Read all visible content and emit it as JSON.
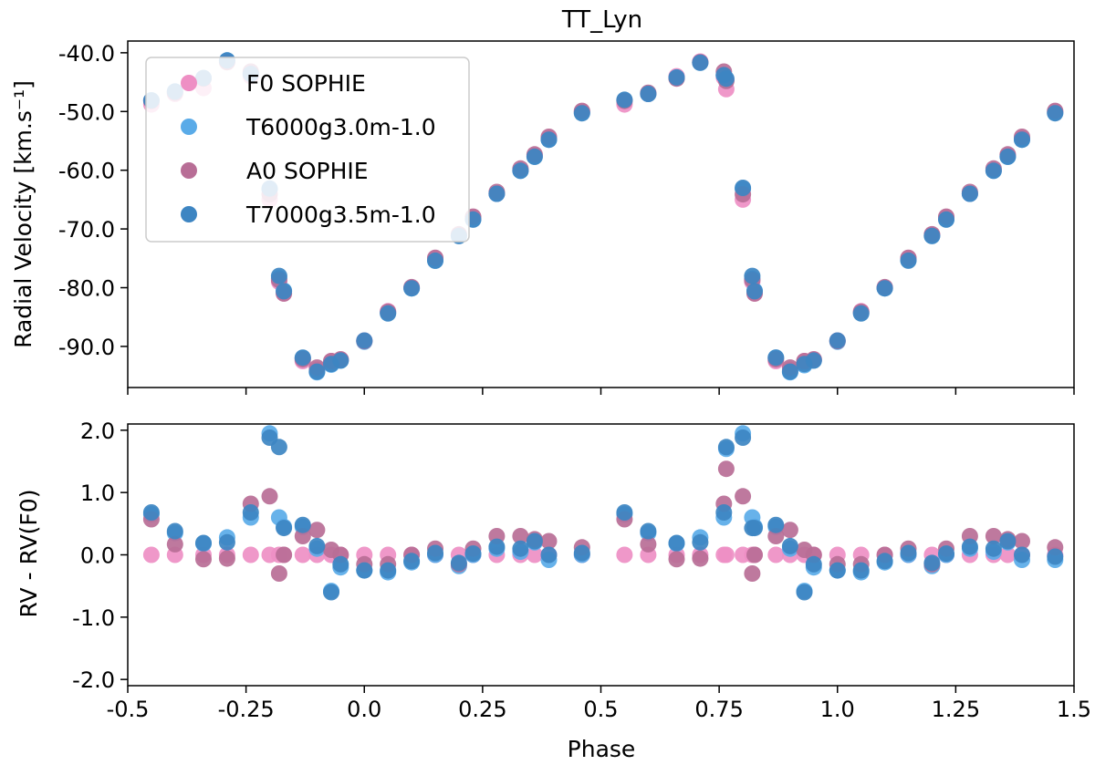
{
  "chart_data": [
    {
      "type": "scatter",
      "title": "TT_Lyn",
      "xlabel": "",
      "ylabel": "Radial Velocity [km.s⁻¹]",
      "xlim": [
        -0.5,
        1.5
      ],
      "ylim": [
        -97,
        -38
      ],
      "y_ticks": [
        -90,
        -80,
        -70,
        -60,
        -50,
        -40
      ],
      "y_tick_labels": [
        "-90.0",
        "-80.0",
        "-70.0",
        "-60.0",
        "-50.0",
        "-40.0"
      ],
      "legend": {
        "placement": "upper-left",
        "entries": [
          "F0 SOPHIE",
          "T6000g3.0m-1.0",
          "A0 SOPHIE",
          "T7000g3.5m-1.0"
        ]
      },
      "series": [
        {
          "name": "F0 SOPHIE",
          "color": "#ee8fc4",
          "x": [
            -0.45,
            -0.4,
            -0.34,
            -0.29,
            -0.24,
            -0.2,
            -0.18,
            -0.17,
            -0.13,
            -0.1,
            -0.07,
            -0.05,
            0.0,
            0.05,
            0.1,
            0.15,
            0.2,
            0.23,
            0.28,
            0.33,
            0.36,
            0.39,
            0.46,
            0.55,
            0.6,
            0.66,
            0.71,
            0.76,
            0.765,
            0.8,
            0.82,
            0.825,
            0.87,
            0.9,
            0.93,
            0.95,
            1.0,
            1.05,
            1.1,
            1.15,
            1.2,
            1.23,
            1.28,
            1.33,
            1.36,
            1.39,
            1.46
          ],
          "y": [
            -48.8,
            -47.0,
            -46.0,
            -41.5,
            -44.0,
            -65.0,
            -79.0,
            -81.0,
            -92.5,
            -94.0,
            -92.5,
            -92.2,
            -89.0,
            -84.0,
            -80.0,
            -75.0,
            -71.0,
            -68.0,
            -64.0,
            -60.0,
            -57.5,
            -54.5,
            -50.0,
            -48.8,
            -47.0,
            -44.0,
            -41.5,
            -44.2,
            -46.2,
            -65.0,
            -79.0,
            -81.0,
            -92.5,
            -94.0,
            -92.5,
            -92.2,
            -89.0,
            -84.0,
            -80.0,
            -75.0,
            -71.0,
            -68.0,
            -64.0,
            -60.0,
            -57.5,
            -54.5,
            -50.0
          ]
        },
        {
          "name": "T6000g3.0m-1.0",
          "color": "#5aabe8",
          "x": [
            -0.45,
            -0.4,
            -0.34,
            -0.29,
            -0.24,
            -0.2,
            -0.18,
            -0.17,
            -0.13,
            -0.1,
            -0.07,
            -0.05,
            0.0,
            0.05,
            0.1,
            0.15,
            0.2,
            0.23,
            0.28,
            0.33,
            0.36,
            0.39,
            0.46,
            0.55,
            0.6,
            0.66,
            0.71,
            0.76,
            0.765,
            0.8,
            0.82,
            0.825,
            0.87,
            0.9,
            0.93,
            0.95,
            1.0,
            1.05,
            1.1,
            1.15,
            1.2,
            1.23,
            1.28,
            1.33,
            1.36,
            1.39,
            1.46
          ],
          "y": [
            -48.1,
            -46.6,
            -44.3,
            -41.3,
            -43.5,
            -63.3,
            -78.4,
            -80.5,
            -92.0,
            -94.4,
            -93.1,
            -92.4,
            -89.2,
            -84.3,
            -80.1,
            -75.4,
            -71.2,
            -68.4,
            -64.0,
            -60.1,
            -57.7,
            -54.8,
            -50.2,
            -48.1,
            -47.0,
            -44.3,
            -41.7,
            -43.8,
            -44.6,
            -63.2,
            -78.5,
            -80.5,
            -91.9,
            -94.4,
            -93.2,
            -92.4,
            -89.2,
            -84.3,
            -80.1,
            -75.3,
            -71.2,
            -68.4,
            -64.0,
            -60.1,
            -57.7,
            -54.8,
            -50.2
          ]
        },
        {
          "name": "A0 SOPHIE",
          "color": "#b86e96",
          "x": [
            -0.45,
            -0.4,
            -0.34,
            -0.29,
            -0.24,
            -0.2,
            -0.18,
            -0.17,
            -0.13,
            -0.1,
            -0.07,
            -0.05,
            0.0,
            0.05,
            0.1,
            0.15,
            0.2,
            0.23,
            0.28,
            0.33,
            0.36,
            0.39,
            0.46,
            0.55,
            0.6,
            0.66,
            0.71,
            0.76,
            0.765,
            0.8,
            0.82,
            0.825,
            0.87,
            0.9,
            0.93,
            0.95,
            1.0,
            1.05,
            1.1,
            1.15,
            1.2,
            1.23,
            1.28,
            1.33,
            1.36,
            1.39,
            1.46
          ],
          "y": [
            -48.2,
            -46.8,
            -44.4,
            -41.6,
            -43.2,
            -64.1,
            -78.7,
            -81.0,
            -92.2,
            -93.6,
            -92.5,
            -92.2,
            -89.1,
            -84.1,
            -79.9,
            -74.9,
            -70.9,
            -67.9,
            -63.7,
            -59.7,
            -57.3,
            -54.3,
            -49.9,
            -48.2,
            -46.8,
            -44.4,
            -41.6,
            -43.2,
            -44.8,
            -64.1,
            -78.7,
            -81.0,
            -92.2,
            -93.6,
            -92.5,
            -92.2,
            -89.1,
            -84.1,
            -79.9,
            -74.9,
            -70.9,
            -67.9,
            -63.7,
            -59.7,
            -57.3,
            -54.3,
            -49.9
          ]
        },
        {
          "name": "T7000g3.5m-1.0",
          "color": "#3d85c2",
          "x": [
            -0.45,
            -0.4,
            -0.34,
            -0.29,
            -0.24,
            -0.2,
            -0.18,
            -0.17,
            -0.13,
            -0.1,
            -0.07,
            -0.05,
            0.0,
            0.05,
            0.1,
            0.15,
            0.2,
            0.23,
            0.28,
            0.33,
            0.36,
            0.39,
            0.46,
            0.55,
            0.6,
            0.66,
            0.71,
            0.76,
            0.765,
            0.8,
            0.82,
            0.825,
            0.87,
            0.9,
            0.93,
            0.95,
            1.0,
            1.05,
            1.1,
            1.15,
            1.2,
            1.23,
            1.28,
            1.33,
            1.36,
            1.39,
            1.46
          ],
          "y": [
            -48.1,
            -46.6,
            -44.3,
            -41.3,
            -43.6,
            -63.1,
            -78.0,
            -80.6,
            -91.9,
            -94.3,
            -93.0,
            -92.4,
            -89.0,
            -84.4,
            -80.1,
            -75.4,
            -71.2,
            -68.4,
            -64.0,
            -60.1,
            -57.7,
            -54.8,
            -50.3,
            -48.0,
            -47.0,
            -44.2,
            -41.7,
            -43.8,
            -44.4,
            -63.0,
            -78.0,
            -80.6,
            -91.9,
            -94.3,
            -93.0,
            -92.4,
            -89.0,
            -84.4,
            -80.1,
            -75.4,
            -71.2,
            -68.4,
            -64.0,
            -60.1,
            -57.7,
            -54.8,
            -50.3
          ]
        }
      ]
    },
    {
      "type": "scatter",
      "title": "",
      "xlabel": "Phase",
      "ylabel": "RV - RV(F0)",
      "xlim": [
        -0.5,
        1.5
      ],
      "ylim": [
        -2.1,
        2.1
      ],
      "x_ticks": [
        -0.5,
        -0.25,
        0.0,
        0.25,
        0.5,
        0.75,
        1.0,
        1.25,
        1.5
      ],
      "x_tick_labels": [
        "-0.5",
        "-0.25",
        "0.0",
        "0.25",
        "0.5",
        "0.75",
        "1.0",
        "1.25",
        "1.5"
      ],
      "y_ticks": [
        -2,
        -1,
        0,
        1,
        2
      ],
      "y_tick_labels": [
        "-2.0",
        "-1.0",
        "0.0",
        "1.0",
        "2.0"
      ],
      "series": [
        {
          "name": "F0 SOPHIE",
          "color": "#ee8fc4",
          "x": [
            -0.45,
            -0.4,
            -0.34,
            -0.29,
            -0.24,
            -0.2,
            -0.18,
            -0.17,
            -0.13,
            -0.1,
            -0.07,
            -0.05,
            0.0,
            0.05,
            0.1,
            0.15,
            0.2,
            0.23,
            0.28,
            0.33,
            0.36,
            0.39,
            0.46,
            0.55,
            0.6,
            0.66,
            0.71,
            0.76,
            0.765,
            0.8,
            0.82,
            0.825,
            0.87,
            0.9,
            0.93,
            0.95,
            1.0,
            1.05,
            1.1,
            1.15,
            1.2,
            1.23,
            1.28,
            1.33,
            1.36,
            1.39,
            1.46
          ],
          "y": [
            0,
            0,
            0,
            0,
            0,
            0,
            0,
            0,
            0,
            0,
            0,
            0,
            0,
            0,
            0,
            0,
            0,
            0,
            0,
            0,
            0,
            0,
            0,
            0,
            0,
            0,
            0,
            0,
            0,
            0,
            0,
            0,
            0,
            0,
            0,
            0,
            0,
            0,
            0,
            0,
            0,
            0,
            0,
            0,
            0,
            0,
            0
          ]
        },
        {
          "name": "T6000g3.0m-1.0",
          "color": "#5aabe8",
          "x": [
            -0.45,
            -0.4,
            -0.34,
            -0.29,
            -0.24,
            -0.2,
            -0.18,
            -0.17,
            -0.13,
            -0.1,
            -0.07,
            -0.05,
            0.0,
            0.05,
            0.1,
            0.15,
            0.2,
            0.23,
            0.28,
            0.33,
            0.36,
            0.39,
            0.46,
            0.55,
            0.6,
            0.66,
            0.71,
            0.76,
            0.765,
            0.8,
            0.82,
            0.825,
            0.87,
            0.9,
            0.93,
            0.95,
            1.0,
            1.05,
            1.1,
            1.15,
            1.2,
            1.23,
            1.28,
            1.33,
            1.36,
            1.39,
            1.46
          ],
          "y": [
            0.65,
            0.35,
            0.18,
            0.28,
            0.6,
            1.95,
            0.6,
            0.45,
            0.45,
            0.1,
            -0.58,
            -0.2,
            -0.25,
            -0.28,
            -0.12,
            0.0,
            -0.18,
            0.0,
            0.1,
            0.05,
            0.2,
            -0.08,
            0.0,
            0.65,
            0.35,
            0.18,
            0.28,
            0.6,
            1.7,
            1.95,
            0.6,
            0.45,
            0.45,
            0.1,
            -0.58,
            -0.2,
            -0.25,
            -0.28,
            -0.12,
            0.0,
            -0.18,
            0.0,
            0.1,
            0.05,
            0.2,
            -0.08,
            -0.08
          ]
        },
        {
          "name": "A0 SOPHIE",
          "color": "#b86e96",
          "x": [
            -0.45,
            -0.4,
            -0.34,
            -0.29,
            -0.24,
            -0.2,
            -0.18,
            -0.17,
            -0.13,
            -0.1,
            -0.07,
            -0.05,
            0.0,
            0.05,
            0.1,
            0.15,
            0.2,
            0.23,
            0.28,
            0.33,
            0.36,
            0.39,
            0.46,
            0.55,
            0.6,
            0.66,
            0.71,
            0.76,
            0.765,
            0.8,
            0.82,
            0.825,
            0.87,
            0.9,
            0.93,
            0.95,
            1.0,
            1.05,
            1.1,
            1.15,
            1.2,
            1.23,
            1.28,
            1.33,
            1.36,
            1.39,
            1.46
          ],
          "y": [
            0.57,
            0.17,
            -0.07,
            -0.06,
            0.82,
            0.94,
            -0.3,
            0.0,
            0.3,
            0.4,
            0.08,
            0.0,
            -0.15,
            -0.15,
            0.0,
            0.1,
            -0.15,
            0.1,
            0.3,
            0.3,
            0.25,
            0.22,
            0.12,
            0.57,
            0.17,
            -0.07,
            -0.06,
            0.82,
            1.38,
            0.94,
            -0.3,
            0.0,
            0.3,
            0.4,
            0.08,
            0.0,
            -0.15,
            -0.15,
            0.0,
            0.1,
            -0.15,
            0.1,
            0.3,
            0.3,
            0.25,
            0.22,
            0.12
          ]
        },
        {
          "name": "T7000g3.5m-1.0",
          "color": "#3d85c2",
          "x": [
            -0.45,
            -0.4,
            -0.34,
            -0.29,
            -0.24,
            -0.2,
            -0.18,
            -0.17,
            -0.13,
            -0.1,
            -0.07,
            -0.05,
            0.0,
            0.05,
            0.1,
            0.15,
            0.2,
            0.23,
            0.28,
            0.33,
            0.36,
            0.39,
            0.46,
            0.55,
            0.6,
            0.66,
            0.71,
            0.76,
            0.765,
            0.8,
            0.82,
            0.825,
            0.87,
            0.9,
            0.93,
            0.95,
            1.0,
            1.05,
            1.1,
            1.15,
            1.2,
            1.23,
            1.28,
            1.33,
            1.36,
            1.39,
            1.46
          ],
          "y": [
            0.68,
            0.38,
            0.19,
            0.2,
            0.68,
            1.88,
            1.73,
            0.43,
            0.48,
            0.14,
            -0.6,
            -0.15,
            -0.25,
            -0.25,
            -0.1,
            0.03,
            -0.13,
            0.02,
            0.13,
            0.1,
            0.22,
            0.0,
            0.03,
            0.68,
            0.38,
            0.19,
            0.2,
            0.68,
            1.73,
            1.88,
            0.43,
            0.43,
            0.48,
            0.14,
            -0.6,
            -0.15,
            -0.25,
            -0.25,
            -0.1,
            0.03,
            -0.13,
            0.02,
            0.13,
            0.1,
            0.22,
            0.0,
            -0.03
          ]
        }
      ]
    }
  ]
}
